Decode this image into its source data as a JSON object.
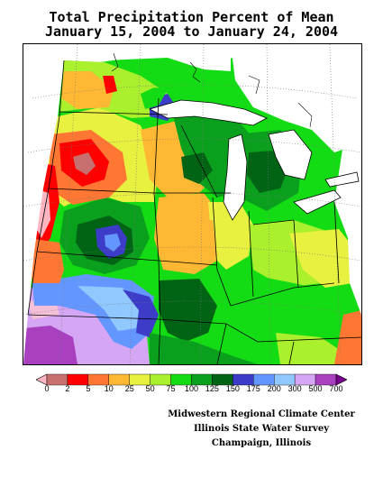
{
  "title": {
    "line1": "Total Precipitation Percent of Mean",
    "line2": "January 15, 2004 to January 24, 2004"
  },
  "legend": {
    "values": [
      "0",
      "2",
      "5",
      "10",
      "25",
      "50",
      "75",
      "100",
      "125",
      "150",
      "175",
      "200",
      "300",
      "500",
      "700"
    ],
    "colors": [
      "#ffb6c1",
      "#c87070",
      "#ff0000",
      "#ff7733",
      "#ffb833",
      "#e8f040",
      "#aaf02c",
      "#14dc14",
      "#0aa01e",
      "#006414",
      "#3c3cc8",
      "#6496ff",
      "#90c8ff",
      "#d4a6f4",
      "#a840c0",
      "#7a0090"
    ]
  },
  "credits": {
    "line1": "Midwestern Regional Climate Center",
    "line2": "Illinois State Water Survey",
    "line3": "Champaign, Illinois"
  },
  "map": {
    "region": "Midwest United States"
  }
}
